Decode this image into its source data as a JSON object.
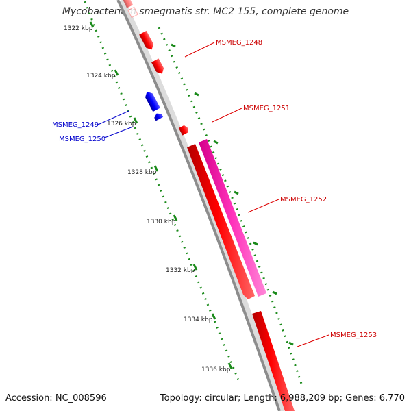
{
  "title": "Mycobacterium smegmatis str. MC2 155, complete genome",
  "footer": {
    "accession": "Accession: NC_008596",
    "stats": "Topology: circular; Length: 6,988,209 bp; Genes: 6,770"
  },
  "colors": {
    "backbone": "#8c8c8c",
    "forward_gene": "#ff0000",
    "reverse_gene": "#0000ff",
    "highlight_gene": "#ff33bb",
    "kbp_ticks": "#1a8a1a",
    "gene_label_forward": "#cc0000",
    "gene_label_reverse": "#0000cc"
  },
  "scale_ticks": [
    "1322 kbp",
    "1324 kbp",
    "1326 kbp",
    "1328 kbp",
    "1330 kbp",
    "1332 kbp",
    "1334 kbp",
    "1336 kbp"
  ],
  "genes": [
    {
      "label": "MSMEG_1248",
      "strand": "forward"
    },
    {
      "label": "MSMEG_1249",
      "strand": "reverse"
    },
    {
      "label": "MSMEG_1250",
      "strand": "reverse"
    },
    {
      "label": "MSMEG_1251",
      "strand": "forward"
    },
    {
      "label": "MSMEG_1252",
      "strand": "forward"
    },
    {
      "label": "MSMEG_1253",
      "strand": "forward"
    }
  ]
}
